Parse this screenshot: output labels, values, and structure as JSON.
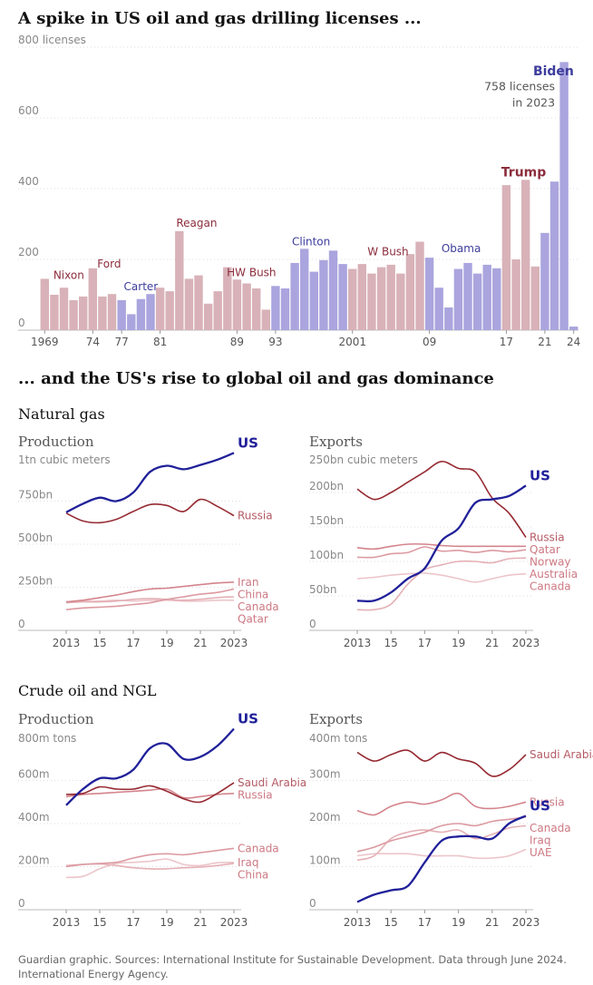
{
  "headline1": "A spike in US oil and gas drilling licenses ...",
  "headline2": "... and the US's rise to global oil and gas dominance",
  "colors": {
    "republican": "#d8b2b8",
    "democrat": "#aaa5de",
    "republican_text": "#8b2d3c",
    "democrat_text": "#3d3d9c",
    "us": "#20209a",
    "grid": "#dddddd",
    "axis_text": "#888888"
  },
  "chart_data": [
    {
      "id": "licenses",
      "type": "bar",
      "title": "A spike in US oil and gas drilling licenses ...",
      "unit_label": "800 licenses",
      "ylim": [
        0,
        800
      ],
      "yticks": [
        {
          "v": 0,
          "label": "0"
        },
        {
          "v": 200,
          "label": "200"
        },
        {
          "v": 400,
          "label": "400"
        },
        {
          "v": 600,
          "label": "600"
        },
        {
          "v": 800,
          "label": "800 licenses"
        }
      ],
      "xtick_labels": [
        {
          "year": 1969,
          "label": "1969"
        },
        {
          "year": 1974,
          "label": "74"
        },
        {
          "year": 1977,
          "label": "77"
        },
        {
          "year": 1981,
          "label": "81"
        },
        {
          "year": 1989,
          "label": "89"
        },
        {
          "year": 1993,
          "label": "93"
        },
        {
          "year": 2001,
          "label": "2001"
        },
        {
          "year": 2009,
          "label": "09"
        },
        {
          "year": 2017,
          "label": "17"
        },
        {
          "year": 2021,
          "label": "21"
        },
        {
          "year": 2024,
          "label": "24"
        }
      ],
      "years": [
        1969,
        1970,
        1971,
        1972,
        1973,
        1974,
        1975,
        1976,
        1977,
        1978,
        1979,
        1980,
        1981,
        1982,
        1983,
        1984,
        1985,
        1986,
        1987,
        1988,
        1989,
        1990,
        1991,
        1992,
        1993,
        1994,
        1995,
        1996,
        1997,
        1998,
        1999,
        2000,
        2001,
        2002,
        2003,
        2004,
        2005,
        2006,
        2007,
        2008,
        2009,
        2010,
        2011,
        2012,
        2013,
        2014,
        2015,
        2016,
        2017,
        2018,
        2019,
        2020,
        2021,
        2022,
        2023,
        2024
      ],
      "values": [
        145,
        100,
        120,
        85,
        95,
        175,
        95,
        102,
        85,
        45,
        88,
        102,
        120,
        110,
        280,
        145,
        155,
        75,
        110,
        178,
        143,
        132,
        118,
        58,
        125,
        118,
        190,
        230,
        165,
        198,
        225,
        187,
        173,
        187,
        160,
        178,
        185,
        160,
        215,
        250,
        205,
        120,
        64,
        173,
        190,
        160,
        185,
        175,
        410,
        200,
        425,
        180,
        275,
        420,
        758,
        10
      ],
      "party": [
        "R",
        "R",
        "R",
        "R",
        "R",
        "R",
        "R",
        "R",
        "D",
        "D",
        "D",
        "D",
        "R",
        "R",
        "R",
        "R",
        "R",
        "R",
        "R",
        "R",
        "R",
        "R",
        "R",
        "R",
        "D",
        "D",
        "D",
        "D",
        "D",
        "D",
        "D",
        "D",
        "R",
        "R",
        "R",
        "R",
        "R",
        "R",
        "R",
        "R",
        "D",
        "D",
        "D",
        "D",
        "D",
        "D",
        "D",
        "D",
        "R",
        "R",
        "R",
        "R",
        "D",
        "D",
        "D",
        "D"
      ],
      "presidents": [
        {
          "name": "Nixon",
          "party": "R",
          "year": 1971.5,
          "value": 145,
          "size": "s"
        },
        {
          "name": "Ford",
          "party": "R",
          "year": 1975.7,
          "value": 177,
          "size": "s"
        },
        {
          "name": "Carter",
          "party": "D",
          "year": 1979,
          "value": 113,
          "size": "s"
        },
        {
          "name": "Reagan",
          "party": "R",
          "year": 1984.8,
          "value": 292,
          "size": "s"
        },
        {
          "name": "HW Bush",
          "party": "R",
          "year": 1990.5,
          "value": 152,
          "size": "s"
        },
        {
          "name": "Clinton",
          "party": "D",
          "year": 1996.7,
          "value": 240,
          "size": "s"
        },
        {
          "name": "W Bush",
          "party": "R",
          "year": 2004.7,
          "value": 212,
          "size": "s"
        },
        {
          "name": "Obama",
          "party": "D",
          "year": 2012.3,
          "value": 220,
          "size": "s"
        },
        {
          "name": "Trump",
          "party": "R",
          "year": 2018.8,
          "value": 435,
          "size": "l"
        },
        {
          "name": "Biden",
          "party": "D",
          "year": 2021.9,
          "value": 720,
          "size": "l"
        }
      ],
      "annotation": {
        "line1": "758 licenses",
        "line2": "in 2023",
        "year": 2023,
        "value": 758
      }
    },
    {
      "id": "gas_production",
      "type": "line",
      "section": "Natural gas",
      "title": "Production",
      "unit_label": "1tn cubic meters",
      "x": [
        2013,
        2014,
        2015,
        2016,
        2017,
        2018,
        2019,
        2020,
        2021,
        2022,
        2023
      ],
      "xtick_labels": [
        "2013",
        "15",
        "17",
        "19",
        "21",
        "2023"
      ],
      "ylim": [
        0,
        1000
      ],
      "yticks": [
        {
          "v": 0,
          "label": "0"
        },
        {
          "v": 250,
          "label": "250bn"
        },
        {
          "v": 500,
          "label": "500bn"
        },
        {
          "v": 750,
          "label": "750bn"
        }
      ],
      "series": [
        {
          "name": "US",
          "values": [
            685,
            735,
            770,
            750,
            800,
            920,
            955,
            935,
            960,
            990,
            1030
          ]
        },
        {
          "name": "Russia",
          "values": [
            680,
            635,
            625,
            645,
            690,
            730,
            725,
            690,
            760,
            720,
            665
          ]
        },
        {
          "name": "Iran",
          "values": [
            165,
            175,
            190,
            205,
            225,
            240,
            245,
            255,
            265,
            275,
            280
          ]
        },
        {
          "name": "China",
          "values": [
            120,
            130,
            135,
            140,
            150,
            160,
            180,
            195,
            210,
            220,
            240
          ]
        },
        {
          "name": "Canada",
          "values": [
            160,
            165,
            165,
            170,
            180,
            185,
            180,
            175,
            180,
            190,
            195
          ]
        },
        {
          "name": "Qatar",
          "values": [
            165,
            170,
            170,
            175,
            170,
            175,
            175,
            170,
            170,
            175,
            175
          ]
        }
      ],
      "label_order": [
        {
          "name": "US",
          "text": "US"
        },
        {
          "name": "Russia",
          "text": "Russia"
        },
        {
          "name": "Iran",
          "text": "Iran"
        },
        {
          "name": "China",
          "text": "China"
        },
        {
          "name": "Canada",
          "text": "Canada"
        },
        {
          "name": "Qatar",
          "text": "Qatar"
        }
      ]
    },
    {
      "id": "gas_exports",
      "type": "line",
      "section": "Natural gas",
      "title": "Exports",
      "unit_label": "250bn cubic meters",
      "x": [
        2013,
        2014,
        2015,
        2016,
        2017,
        2018,
        2019,
        2020,
        2021,
        2022,
        2023
      ],
      "xtick_labels": [
        "2013",
        "15",
        "17",
        "19",
        "21",
        "2023"
      ],
      "ylim": [
        0,
        250
      ],
      "yticks": [
        {
          "v": 0,
          "label": "0"
        },
        {
          "v": 50,
          "label": "50bn"
        },
        {
          "v": 100,
          "label": "100bn"
        },
        {
          "v": 150,
          "label": "150bn"
        },
        {
          "v": 200,
          "label": "200bn"
        }
      ],
      "series": [
        {
          "name": "US",
          "values": [
            43,
            43,
            55,
            75,
            90,
            130,
            148,
            185,
            190,
            195,
            210
          ]
        },
        {
          "name": "Russia",
          "values": [
            205,
            190,
            200,
            215,
            230,
            245,
            235,
            230,
            192,
            170,
            135
          ]
        },
        {
          "name": "Qatar",
          "values": [
            120,
            118,
            122,
            125,
            125,
            123,
            122,
            122,
            122,
            122,
            122
          ]
        },
        {
          "name": "Norway",
          "values": [
            106,
            106,
            111,
            113,
            121,
            115,
            116,
            113,
            116,
            114,
            117
          ]
        },
        {
          "name": "Australia",
          "values": [
            30,
            30,
            38,
            67,
            88,
            95,
            100,
            100,
            98,
            104,
            105
          ]
        },
        {
          "name": "Canada",
          "values": [
            75,
            77,
            80,
            82,
            83,
            80,
            75,
            70,
            75,
            80,
            82
          ]
        }
      ],
      "label_order": [
        {
          "name": "US",
          "text": "US"
        },
        {
          "name": "Russia",
          "text": "Russia"
        },
        {
          "name": "Qatar",
          "text": "Qatar"
        },
        {
          "name": "Norway",
          "text": "Norway"
        },
        {
          "name": "Australia",
          "text": "Australia"
        },
        {
          "name": "Canada",
          "text": "Canada"
        }
      ]
    },
    {
      "id": "oil_production",
      "type": "line",
      "section": "Crude oil and NGL",
      "title": "Production",
      "unit_label": "800m tons",
      "x": [
        2013,
        2014,
        2015,
        2016,
        2017,
        2018,
        2019,
        2020,
        2021,
        2022,
        2023
      ],
      "xtick_labels": [
        "2013",
        "15",
        "17",
        "19",
        "21",
        "2023"
      ],
      "ylim": [
        0,
        800
      ],
      "yticks": [
        {
          "v": 0,
          "label": "0"
        },
        {
          "v": 200,
          "label": "200m"
        },
        {
          "v": 400,
          "label": "400m"
        },
        {
          "v": 600,
          "label": "600m"
        }
      ],
      "series": [
        {
          "name": "US",
          "values": [
            485,
            560,
            610,
            610,
            650,
            750,
            770,
            700,
            710,
            760,
            840
          ]
        },
        {
          "name": "Saudi Arabia",
          "values": [
            535,
            540,
            570,
            560,
            560,
            575,
            550,
            515,
            500,
            540,
            590
          ]
        },
        {
          "name": "Russia",
          "values": [
            525,
            535,
            540,
            545,
            550,
            555,
            560,
            520,
            525,
            535,
            540
          ]
        },
        {
          "name": "Canada",
          "values": [
            200,
            210,
            215,
            220,
            240,
            255,
            260,
            255,
            265,
            275,
            285
          ]
        },
        {
          "name": "China",
          "values": [
            205,
            210,
            212,
            205,
            195,
            190,
            190,
            195,
            198,
            205,
            215
          ]
        },
        {
          "name": "Iraq",
          "values": [
            150,
            155,
            190,
            215,
            220,
            225,
            235,
            210,
            205,
            218,
            220
          ]
        }
      ],
      "label_order": [
        {
          "name": "US",
          "text": "US"
        },
        {
          "name": "Saudi Arabia",
          "text": "Saudi Arabia"
        },
        {
          "name": "Russia",
          "text": "Russia"
        },
        {
          "name": "Canada",
          "text": "Canada"
        },
        {
          "name": "China",
          "text": "China"
        },
        {
          "name": "Iraq",
          "text": "Iraq"
        }
      ]
    },
    {
      "id": "oil_exports",
      "type": "line",
      "section": "Crude oil and NGL",
      "title": "Exports",
      "unit_label": "400m tons",
      "x": [
        2013,
        2014,
        2015,
        2016,
        2017,
        2018,
        2019,
        2020,
        2021,
        2022,
        2023
      ],
      "xtick_labels": [
        "2013",
        "15",
        "17",
        "19",
        "21",
        "2023"
      ],
      "ylim": [
        0,
        400
      ],
      "yticks": [
        {
          "v": 0,
          "label": "0"
        },
        {
          "v": 100,
          "label": "100m"
        },
        {
          "v": 200,
          "label": "200m"
        },
        {
          "v": 300,
          "label": "300m"
        }
      ],
      "series": [
        {
          "name": "US",
          "values": [
            18,
            35,
            45,
            55,
            110,
            160,
            170,
            170,
            165,
            200,
            218
          ]
        },
        {
          "name": "Saudi Arabia",
          "values": [
            365,
            345,
            360,
            370,
            345,
            365,
            350,
            340,
            310,
            325,
            360
          ]
        },
        {
          "name": "Russia",
          "values": [
            230,
            220,
            240,
            250,
            245,
            255,
            270,
            240,
            235,
            240,
            250
          ]
        },
        {
          "name": "Canada",
          "values": [
            135,
            145,
            160,
            170,
            180,
            195,
            200,
            195,
            205,
            210,
            215
          ]
        },
        {
          "name": "Iraq",
          "values": [
            115,
            125,
            165,
            180,
            185,
            180,
            185,
            165,
            175,
            190,
            195
          ]
        },
        {
          "name": "UAE",
          "values": [
            125,
            130,
            130,
            130,
            125,
            125,
            125,
            120,
            120,
            125,
            140
          ]
        }
      ],
      "label_order": [
        {
          "name": "Saudi Arabia",
          "text": "Saudi Arabia"
        },
        {
          "name": "Russia",
          "text": "Russia"
        },
        {
          "name": "US",
          "text": "US"
        },
        {
          "name": "Canada",
          "text": "Canada"
        },
        {
          "name": "Iraq",
          "text": "Iraq"
        },
        {
          "name": "UAE",
          "text": "UAE"
        }
      ]
    }
  ],
  "sections": {
    "gas": "Natural gas",
    "oil": "Crude oil and NGL"
  },
  "footer": {
    "line1": "Guardian graphic. Sources: International Institute for Sustainable Development. Data through June 2024.",
    "line2": "International Energy Agency."
  }
}
